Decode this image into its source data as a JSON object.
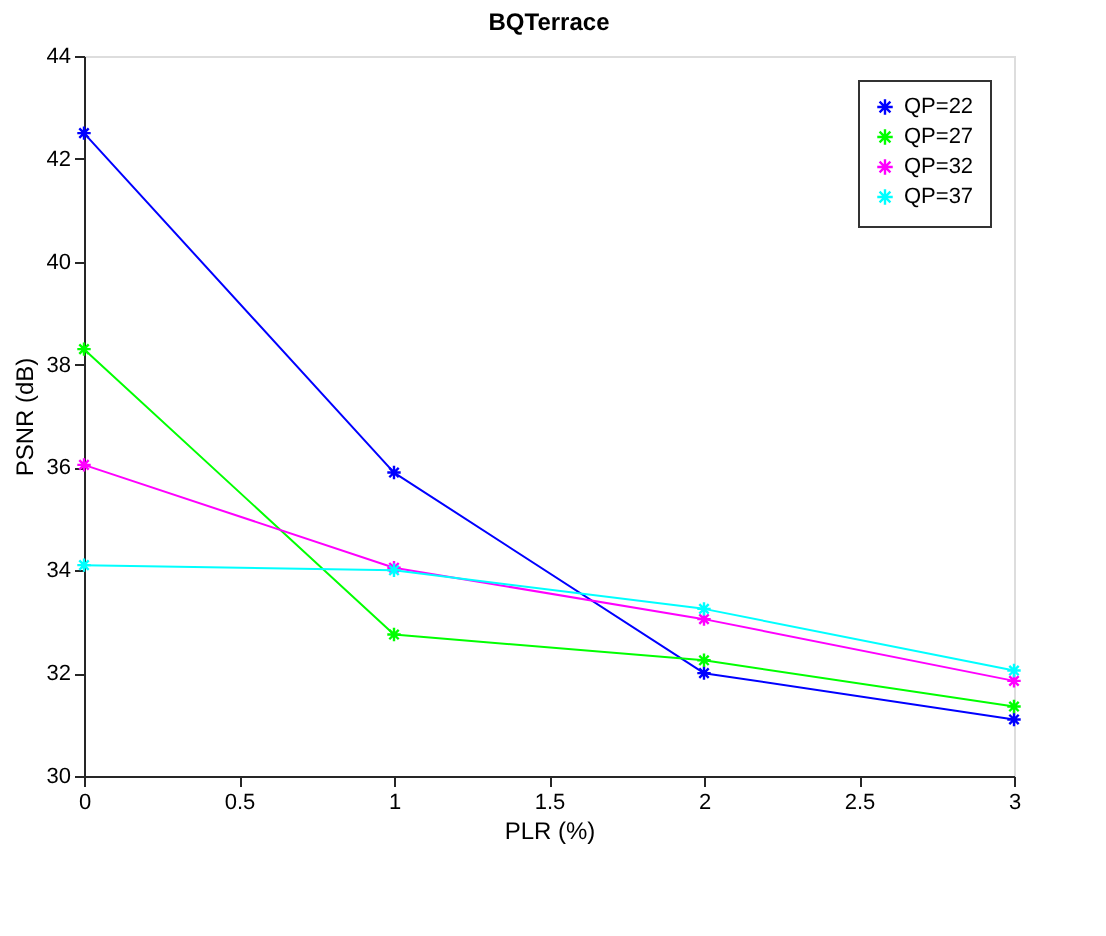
{
  "chart_data": {
    "type": "line",
    "title": "BQTerrace",
    "xlabel": "PLR (%)",
    "ylabel": "PSNR (dB)",
    "x": [
      0,
      1,
      2,
      3
    ],
    "series": [
      {
        "name": "QP=22",
        "color": "#0000ff",
        "values": [
          42.5,
          35.9,
          32.0,
          31.1
        ]
      },
      {
        "name": "QP=27",
        "color": "#00ff00",
        "values": [
          38.3,
          32.75,
          32.25,
          31.35
        ]
      },
      {
        "name": "QP=32",
        "color": "#ff00ff",
        "values": [
          36.05,
          34.05,
          33.05,
          31.85
        ]
      },
      {
        "name": "QP=37",
        "color": "#00ffff",
        "values": [
          34.1,
          34.0,
          33.25,
          32.05
        ]
      }
    ],
    "xlim": [
      0,
      3
    ],
    "xticks": [
      0,
      0.5,
      1,
      1.5,
      2,
      2.5,
      3
    ],
    "ylim": [
      30,
      44
    ],
    "yticks": [
      30,
      32,
      34,
      36,
      38,
      40,
      42,
      44
    ],
    "grid": false,
    "legend": "top right",
    "marker": "cross",
    "line_style": "solid"
  }
}
